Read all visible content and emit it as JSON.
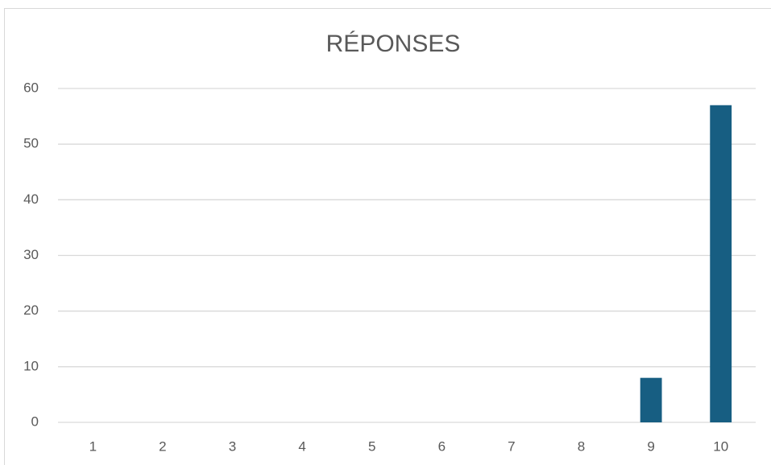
{
  "chart_data": {
    "type": "bar",
    "title": "RÉPONSES",
    "categories": [
      "1",
      "2",
      "3",
      "4",
      "5",
      "6",
      "7",
      "8",
      "9",
      "10"
    ],
    "values": [
      0,
      0,
      0,
      0,
      0,
      0,
      0,
      0,
      8,
      57
    ],
    "color": "#175e82",
    "ylim": [
      0,
      60
    ],
    "yticks": [
      0,
      10,
      20,
      30,
      40,
      50,
      60
    ],
    "grid": true
  }
}
